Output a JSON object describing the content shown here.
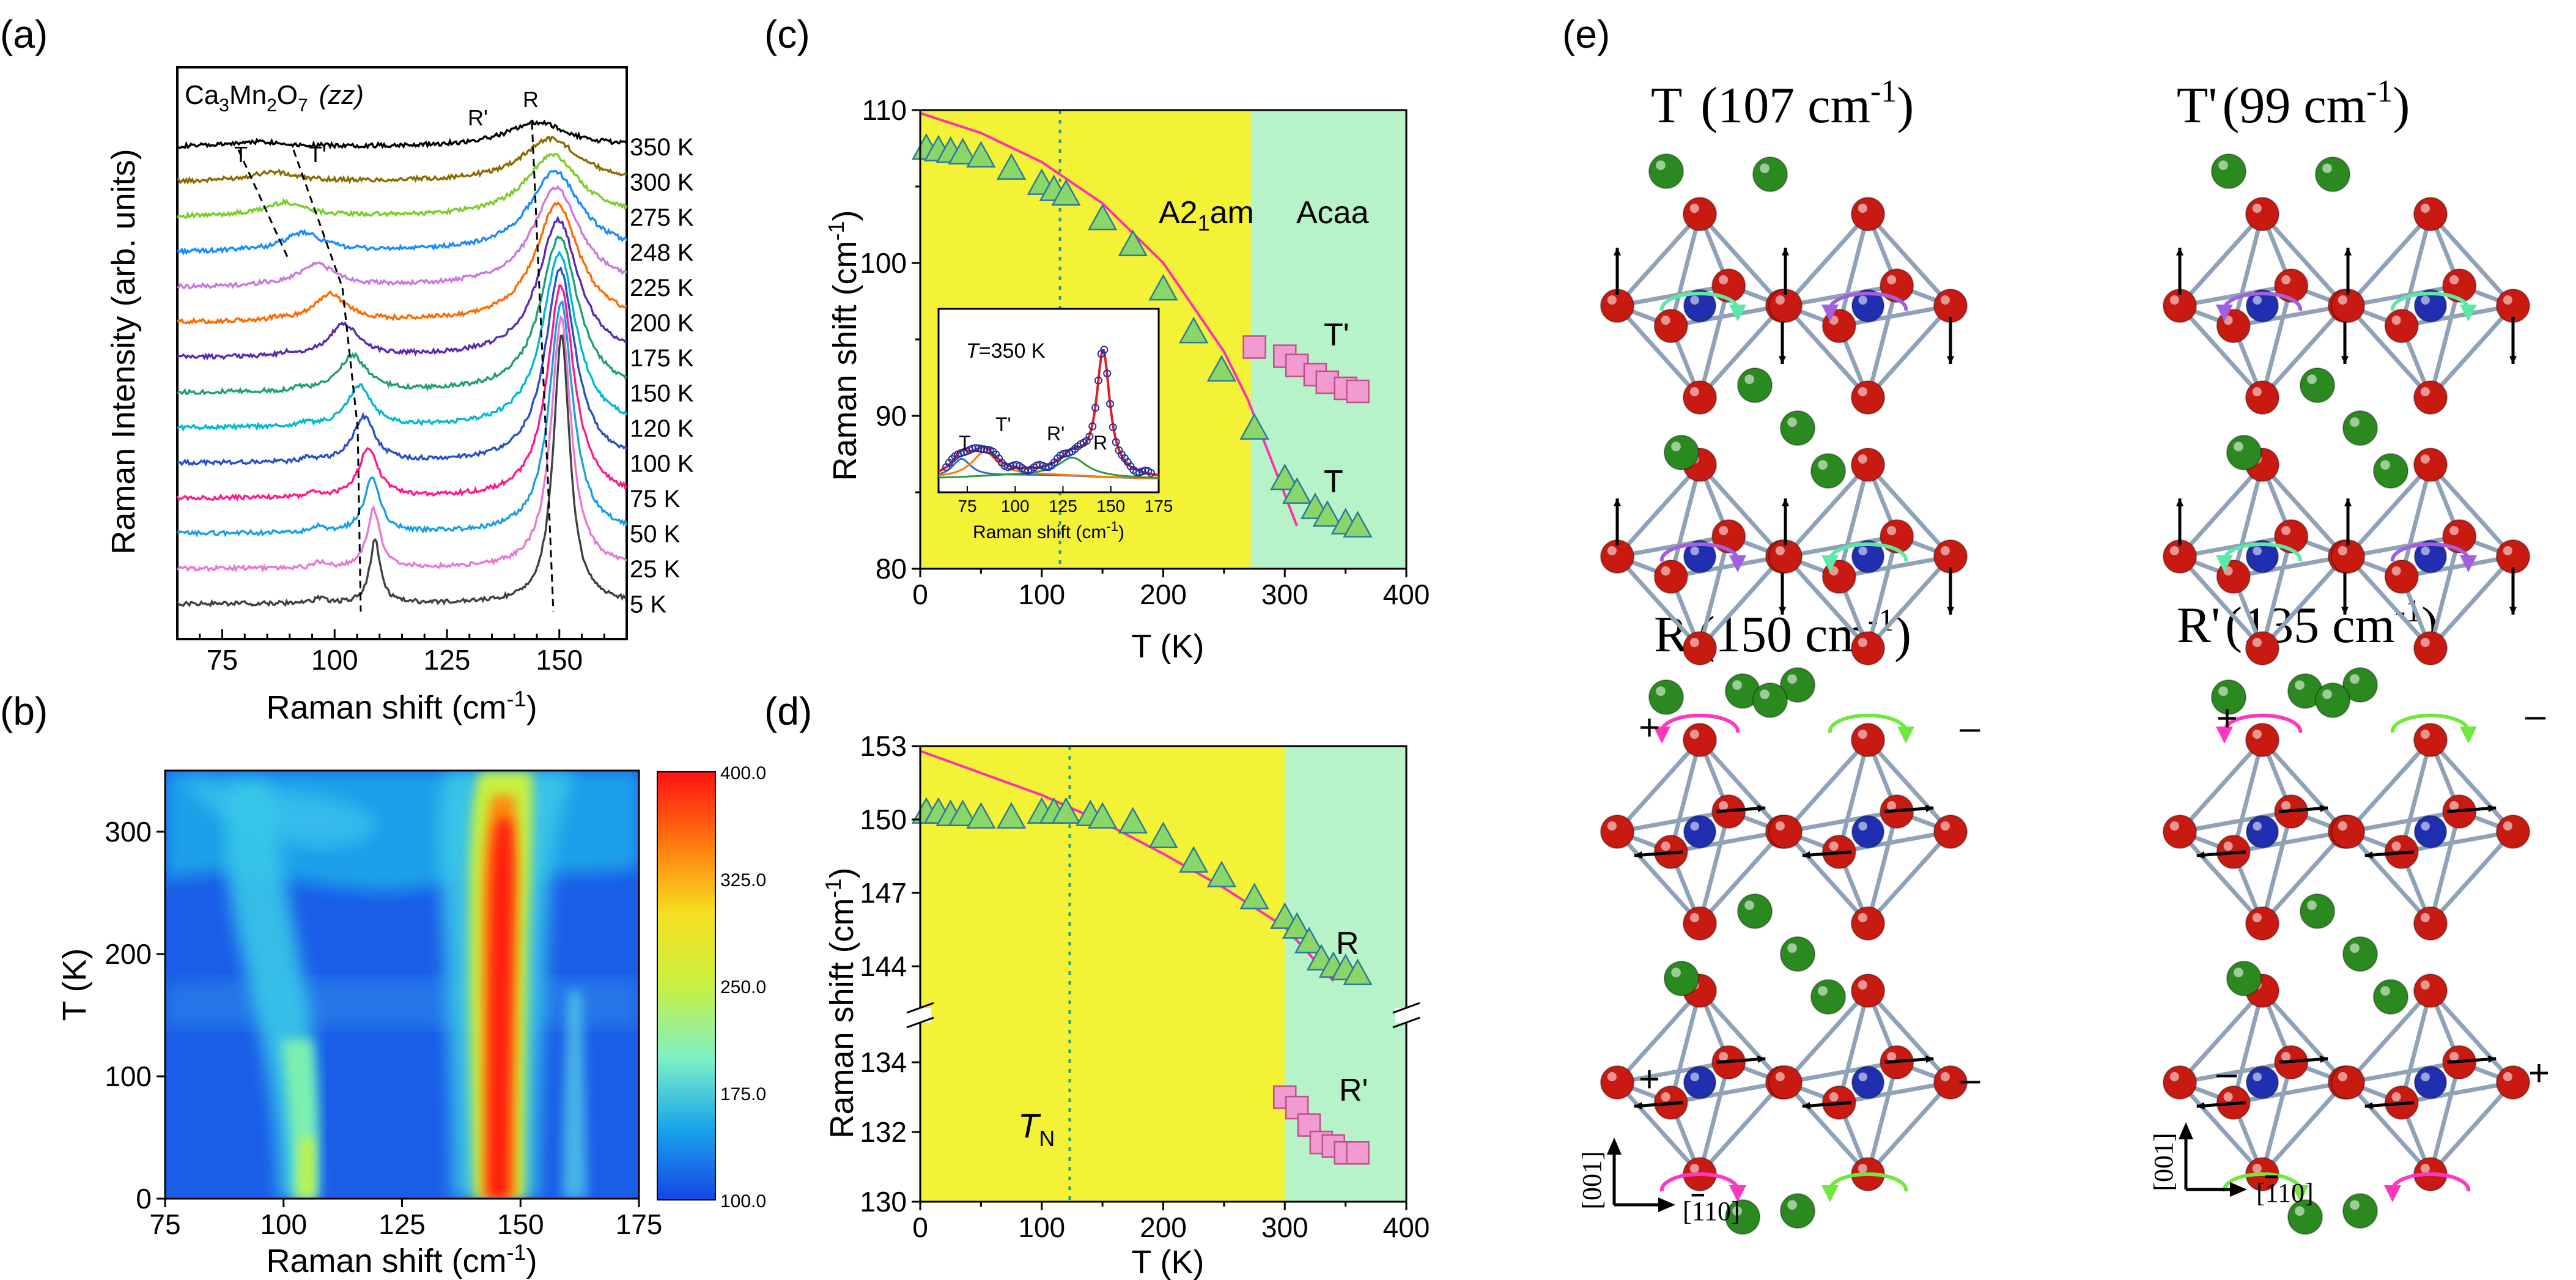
{
  "panels": {
    "a": "(a)",
    "b": "(b)",
    "c": "(c)",
    "d": "(d)",
    "e": "(e)"
  },
  "chart_data": [
    {
      "panel": "(a)",
      "type": "line",
      "title_main": "Ca",
      "title_sub1": "3",
      "title_mid": "Mn",
      "title_sub2": "2",
      "title_o": "O",
      "title_sub3": "7",
      "title_pol": "(zz)",
      "xlabel": "Raman shift (cm",
      "xlabel_sup": "-1",
      "xlabel_end": ")",
      "ylabel": "Raman Intensity (arb. units)",
      "xlim": [
        65,
        165
      ],
      "xticks": [
        75,
        100,
        125,
        150
      ],
      "peak_labels": [
        "T",
        "T'",
        "R'",
        "R"
      ],
      "temperatures": [
        "350 K",
        "300 K",
        "275 K",
        "248 K",
        "225 K",
        "200 K",
        "175 K",
        "150 K",
        "120 K",
        "100 K",
        "75 K",
        "50 K",
        "25 K",
        "5 K"
      ],
      "colors": [
        "#000000",
        "#8a6d00",
        "#7acd2a",
        "#1a8cff",
        "#c879e0",
        "#ff6a00",
        "#5a2ab0",
        "#20a070",
        "#00b8d8",
        "#2850c8",
        "#ff1a8c",
        "#1aa0e0",
        "#e878d0",
        "#404040"
      ],
      "R_peak_positions": [
        145,
        148,
        148.5,
        149,
        149.3,
        149.5,
        149.8,
        150,
        150,
        150.2,
        150.3,
        150.4,
        150.4,
        150.5
      ],
      "T_peak_positions": [
        83,
        86,
        89,
        93,
        96,
        99,
        102,
        104,
        105.5,
        106.5,
        107.5,
        108.3,
        108.7,
        109
      ]
    },
    {
      "panel": "(b)",
      "type": "heatmap",
      "xlabel": "Raman shift (cm",
      "xlabel_sup": "-1",
      "xlabel_end": ")",
      "ylabel": "T (K)",
      "xlim": [
        75,
        175
      ],
      "ylim": [
        0,
        350
      ],
      "xticks": [
        75,
        100,
        125,
        150,
        175
      ],
      "yticks": [
        0,
        100,
        200,
        300
      ],
      "colorbar_ticks": [
        "400.0",
        "325.0",
        "250.0",
        "175.0",
        "100.0"
      ],
      "colorbar_values": [
        400,
        325,
        250,
        175,
        100
      ]
    },
    {
      "panel": "(c)",
      "type": "scatter",
      "xlabel": "T (K)",
      "ylabel": "Raman shift (cm",
      "ylabel_sup": "-1",
      "ylabel_end": ")",
      "xlim": [
        0,
        400
      ],
      "ylim": [
        80,
        110
      ],
      "xticks": [
        0,
        100,
        200,
        300,
        400
      ],
      "yticks": [
        80,
        90,
        100,
        110
      ],
      "phase_boundary": 272,
      "TN": 115,
      "phase_labels": {
        "low": "A2",
        "low_sub": "1",
        "low_end": "am",
        "high": "Acaa"
      },
      "series": [
        {
          "name": "T",
          "marker": "triangle",
          "x": [
            5,
            15,
            25,
            35,
            50,
            75,
            100,
            110,
            120,
            150,
            175,
            200,
            225,
            248,
            275,
            300,
            310,
            325,
            335,
            350,
            360
          ],
          "values": [
            107.5,
            107.4,
            107.3,
            107.2,
            107.0,
            106.2,
            105.2,
            104.8,
            104.5,
            102.9,
            101.2,
            98.3,
            95.5,
            93.0,
            89.2,
            85.9,
            85.0,
            84.0,
            83.5,
            83.0,
            82.8
          ]
        },
        {
          "name": "T'",
          "marker": "square",
          "x": [
            275,
            300,
            310,
            325,
            335,
            350,
            360
          ],
          "values": [
            94.5,
            93.9,
            93.3,
            92.7,
            92.2,
            91.8,
            91.6
          ]
        }
      ],
      "fit_curve": {
        "x": [
          0,
          50,
          100,
          150,
          200,
          250,
          270,
          290,
          310
        ],
        "values": [
          109.8,
          108.5,
          106.6,
          103.9,
          100.0,
          94.2,
          91.0,
          86.9,
          82.8
        ]
      },
      "inset": {
        "label": "T",
        "label_rest": "=350 K",
        "xlabel": "Raman shift (cm",
        "xlabel_sup": "-1",
        "xlabel_end": ")",
        "xlim": [
          60,
          175
        ],
        "xticks": [
          75,
          100,
          125,
          150,
          175
        ],
        "peak_labels": [
          "T",
          "T'",
          "R'",
          "R"
        ]
      }
    },
    {
      "panel": "(d)",
      "type": "scatter",
      "xlabel": "T (K)",
      "ylabel": "Raman shift (cm",
      "ylabel_sup": "-1",
      "ylabel_end": ")",
      "xlim": [
        0,
        400
      ],
      "ylim_upper": [
        142.5,
        153
      ],
      "ylim_lower": [
        130,
        135
      ],
      "xticks": [
        0,
        100,
        200,
        300,
        400
      ],
      "yticks_upper": [
        144,
        147,
        150,
        153
      ],
      "yticks_lower": [
        130,
        132,
        134
      ],
      "phase_boundary": 300,
      "TN": 123,
      "TN_label": "T",
      "TN_sub": "N",
      "series": [
        {
          "name": "R",
          "marker": "triangle",
          "x": [
            5,
            15,
            25,
            35,
            50,
            75,
            100,
            110,
            120,
            140,
            150,
            175,
            200,
            225,
            248,
            275,
            300,
            310,
            320,
            330,
            340,
            350,
            360
          ],
          "values": [
            150.3,
            150.3,
            150.2,
            150.2,
            150.1,
            150.1,
            150.3,
            150.3,
            150.3,
            150.2,
            150.1,
            149.9,
            149.3,
            148.3,
            147.7,
            146.8,
            146.0,
            145.6,
            145.0,
            144.3,
            144.0,
            143.9,
            143.7
          ]
        },
        {
          "name": "R'",
          "marker": "square",
          "x": [
            300,
            310,
            320,
            330,
            340,
            350,
            360
          ],
          "values": [
            133.0,
            132.7,
            132.2,
            131.7,
            131.6,
            131.4,
            131.4
          ]
        }
      ],
      "fit_curve": {
        "x": [
          0,
          50,
          100,
          150,
          200,
          250,
          300,
          340
        ],
        "values": [
          152.8,
          151.9,
          151.0,
          149.9,
          148.6,
          147.2,
          145.6,
          143.4
        ]
      }
    },
    {
      "panel": "(e)",
      "type": "diagram",
      "modes": [
        {
          "name": "T",
          "freq": "(107 cm",
          "sup": "-1",
          "end": ")"
        },
        {
          "name": "T'",
          "freq": "(99 cm",
          "sup": "-1",
          "end": ")"
        },
        {
          "name": "R",
          "freq": "(150 cm",
          "sup": "-1",
          "end": ")"
        },
        {
          "name": "R'",
          "freq": "(135 cm",
          "sup": "-1",
          "end": ")"
        }
      ],
      "signs": {
        "plus": "+",
        "minus": "–"
      },
      "axes": {
        "vertical": "[001]",
        "horizontal": "[110]",
        "horizontal_bar_digit": "1"
      },
      "colors": {
        "mn": "#1f2fb0",
        "o": "#c81a10",
        "ca": "#2a8a20",
        "bond": "#8fa2b8",
        "rot_green": "#5ee8a8",
        "rot_purple": "#a060e0",
        "rot_pink": "#ff38c0",
        "rot_lime": "#70e840"
      }
    }
  ]
}
